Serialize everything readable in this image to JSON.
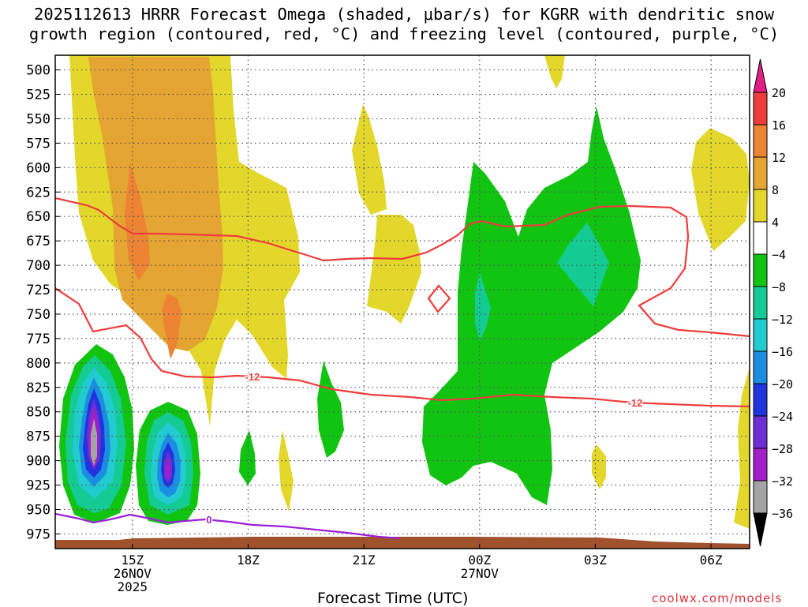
{
  "title_line1": "2025112613 HRRR Forecast Omega (shaded, μbar/s) for KGRR with dendritic snow",
  "title_line2": "growth region (contoured, red, °C) and freezing level (contoured, purple, °C)",
  "xaxis_title": "Forecast Time (UTC)",
  "credit": "coolwx.com/models",
  "chart_data": {
    "type": "time-height cross section",
    "x_label": "Forecast Time (UTC)",
    "x_ticks": [
      {
        "label": "15Z",
        "sub": [
          "26NOV",
          "2025"
        ],
        "hour": 15
      },
      {
        "label": "18Z",
        "sub": [],
        "hour": 18
      },
      {
        "label": "21Z",
        "sub": [],
        "hour": 21
      },
      {
        "label": "00Z",
        "sub": [
          "27NOV"
        ],
        "hour": 24
      },
      {
        "label": "03Z",
        "sub": [],
        "hour": 27
      },
      {
        "label": "06Z",
        "sub": [],
        "hour": 30
      }
    ],
    "x_range_hours": [
      13,
      31
    ],
    "y_ticks": [
      500,
      525,
      550,
      575,
      600,
      625,
      650,
      675,
      700,
      725,
      750,
      775,
      800,
      825,
      850,
      875,
      900,
      925,
      950,
      975
    ],
    "y_range_hpa": [
      485,
      990
    ],
    "colorbar": {
      "labels": [
        "20",
        "16",
        "12",
        "8",
        "4",
        "−4",
        "−8",
        "−12",
        "−16",
        "−20",
        "−24",
        "−28",
        "−32",
        "−36"
      ],
      "bins": [
        {
          "from": 16,
          "to": 20,
          "color": "#ee3c3c"
        },
        {
          "from": 12,
          "to": 16,
          "color": "#ed8434"
        },
        {
          "from": 8,
          "to": 12,
          "color": "#e5a532"
        },
        {
          "from": 4,
          "to": 8,
          "color": "#e3d72c"
        },
        {
          "from": -4,
          "to": 4,
          "color": "#ffffff"
        },
        {
          "from": -8,
          "to": -4,
          "color": "#12c412"
        },
        {
          "from": -12,
          "to": -8,
          "color": "#14cc93"
        },
        {
          "from": -16,
          "to": -12,
          "color": "#22cbd0"
        },
        {
          "from": -20,
          "to": -16,
          "color": "#1c8ee2"
        },
        {
          "from": -24,
          "to": -20,
          "color": "#2033dc"
        },
        {
          "from": -28,
          "to": -24,
          "color": "#6d2ed6"
        },
        {
          "from": -32,
          "to": -28,
          "color": "#a21ec8"
        },
        {
          "from": -36,
          "to": -32,
          "color": "#a4a4a4"
        }
      ],
      "above_color": "#e21d84",
      "below_color": "#000000"
    },
    "contour_labels": {
      "dgz_minus12": "-12",
      "freezing": "0"
    },
    "ground_color": "#a0522d"
  }
}
